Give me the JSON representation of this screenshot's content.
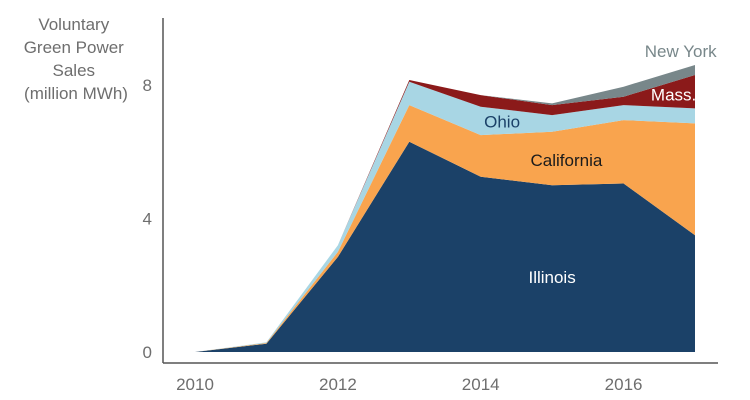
{
  "chart_data": {
    "type": "area",
    "stacked": true,
    "ylabel": [
      "Voluntary",
      "Green Power",
      "Sales",
      "(million MWh)"
    ],
    "xlabel": "",
    "x": [
      2010,
      2011,
      2012,
      2013,
      2014,
      2015,
      2016,
      2017
    ],
    "xticks": [
      "2010",
      "2012",
      "2014",
      "2016"
    ],
    "yticks": [
      "0",
      "4",
      "8"
    ],
    "xlim": [
      2010,
      2017
    ],
    "ylim": [
      0,
      9.2
    ],
    "grid": false,
    "series": [
      {
        "name": "Illinois",
        "color": "#1b4168",
        "label_color": "#ffffff",
        "values": [
          0,
          0.25,
          2.85,
          6.3,
          5.25,
          5.0,
          5.05,
          3.5
        ]
      },
      {
        "name": "California",
        "color": "#f9a44e",
        "label_color": "#1b1b1b",
        "values": [
          0,
          0.02,
          0.15,
          1.1,
          1.25,
          1.6,
          1.9,
          3.35
        ]
      },
      {
        "name": "Ohio",
        "color": "#a8d6e4",
        "label_color": "#1b4168",
        "values": [
          0,
          0.02,
          0.2,
          0.7,
          0.85,
          0.5,
          0.45,
          0.45
        ]
      },
      {
        "name": "Mass.",
        "color": "#8b1a1a",
        "label_color": "#ffffff",
        "values": [
          0,
          0,
          0,
          0.05,
          0.35,
          0.3,
          0.25,
          1.0
        ]
      },
      {
        "name": "New York",
        "color": "#78878a",
        "label_color": "#78878a",
        "values": [
          0,
          0,
          0,
          0,
          0,
          0.05,
          0.3,
          0.3
        ]
      }
    ]
  }
}
